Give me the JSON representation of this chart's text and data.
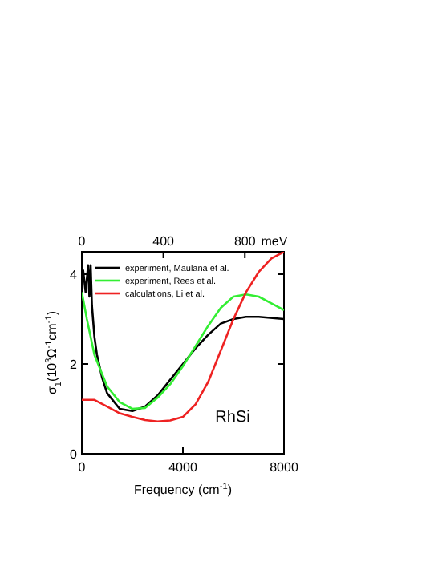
{
  "chart_data": {
    "type": "line",
    "xlabel": "Frequency (cm$^{-1}$)",
    "ylabel": "σ$_{1}$(10$^{3}$Ω$^{-1}$cm$^{-1}$)",
    "x2label": "meV",
    "annotations": [
      "RhSi"
    ],
    "xlim": [
      0,
      8000
    ],
    "xticks": [
      0,
      4000,
      8000
    ],
    "ylim": [
      0,
      4.5
    ],
    "yticks": [
      0,
      2,
      4
    ],
    "x2lim": [
      0,
      991.9
    ],
    "x2ticks": [
      0,
      400,
      800
    ],
    "legend": "top left",
    "grid": false,
    "series": [
      {
        "name": "experiment, Maulana et al.",
        "color": "#000000",
        "x": [
          50,
          150,
          250,
          300,
          350,
          400,
          500,
          600,
          800,
          1000,
          1500,
          2000,
          2500,
          3000,
          3500,
          4000,
          4500,
          5000,
          5500,
          6000,
          6500,
          7000,
          8000
        ],
        "values": [
          4.1,
          3.6,
          4.2,
          3.5,
          4.2,
          3.3,
          2.6,
          2.2,
          1.7,
          1.35,
          1.0,
          0.95,
          1.05,
          1.3,
          1.65,
          2.0,
          2.35,
          2.65,
          2.9,
          3.0,
          3.05,
          3.05,
          3.0
        ]
      },
      {
        "name": "experiment, Rees et al.",
        "color": "#33ee33",
        "x": [
          0,
          200,
          500,
          1000,
          1500,
          2000,
          2500,
          3000,
          3500,
          4000,
          4500,
          5000,
          5500,
          6000,
          6500,
          7000,
          7500,
          8000
        ],
        "values": [
          3.6,
          3.0,
          2.2,
          1.5,
          1.15,
          1.0,
          1.02,
          1.25,
          1.55,
          1.95,
          2.4,
          2.85,
          3.25,
          3.5,
          3.55,
          3.5,
          3.35,
          3.2
        ]
      },
      {
        "name": "calculations, Li et al.",
        "color": "#ee2222",
        "x": [
          0,
          500,
          1000,
          1500,
          2000,
          2500,
          3000,
          3500,
          4000,
          4500,
          5000,
          5500,
          6000,
          6500,
          7000,
          7500,
          8000
        ],
        "values": [
          1.2,
          1.2,
          1.05,
          0.9,
          0.82,
          0.75,
          0.72,
          0.74,
          0.82,
          1.1,
          1.6,
          2.3,
          3.0,
          3.6,
          4.05,
          4.35,
          4.5
        ]
      }
    ]
  }
}
